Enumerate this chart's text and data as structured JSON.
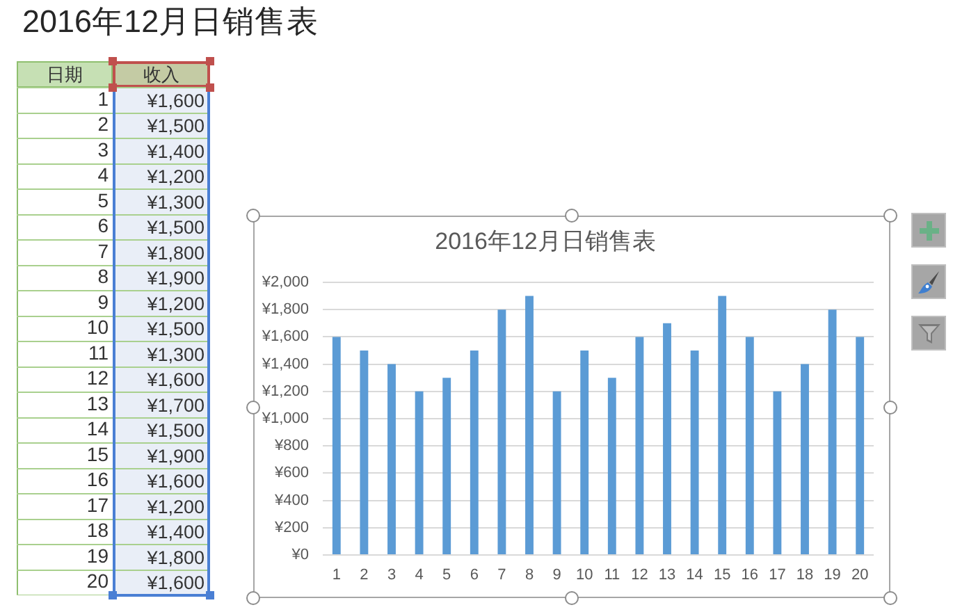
{
  "chart_data": [
    {
      "type": "heatmap",
      "title": "2016年12月日销售表",
      "ylabel": "日期",
      "categories": [
        "收入"
      ],
      "y_categories": [
        "1",
        "2",
        "3",
        "4",
        "5",
        "6",
        "7",
        "8",
        "9",
        "10",
        "11",
        "12",
        "13",
        "14",
        "15",
        "16",
        "17",
        "18",
        "19",
        "20"
      ],
      "cells": [
        [
          1600
        ],
        [
          1500
        ],
        [
          1400
        ],
        [
          1200
        ],
        [
          1300
        ],
        [
          1500
        ],
        [
          1800
        ],
        [
          1900
        ],
        [
          1200
        ],
        [
          1500
        ],
        [
          1300
        ],
        [
          1600
        ],
        [
          1700
        ],
        [
          1500
        ],
        [
          1900
        ],
        [
          1600
        ],
        [
          1200
        ],
        [
          1400
        ],
        [
          1800
        ],
        [
          1600
        ]
      ],
      "cell_labels": [
        [
          "¥1,600"
        ],
        [
          "¥1,500"
        ],
        [
          "¥1,400"
        ],
        [
          "¥1,200"
        ],
        [
          "¥1,300"
        ],
        [
          "¥1,500"
        ],
        [
          "¥1,800"
        ],
        [
          "¥1,900"
        ],
        [
          "¥1,200"
        ],
        [
          "¥1,500"
        ],
        [
          "¥1,300"
        ],
        [
          "¥1,600"
        ],
        [
          "¥1,700"
        ],
        [
          "¥1,500"
        ],
        [
          "¥1,900"
        ],
        [
          "¥1,600"
        ],
        [
          "¥1,200"
        ],
        [
          "¥1,400"
        ],
        [
          "¥1,800"
        ],
        [
          "¥1,600"
        ]
      ],
      "color": "#e9eef7"
    },
    {
      "type": "bar",
      "title": "2016年12月日销售表",
      "categories": [
        "1",
        "2",
        "3",
        "4",
        "5",
        "6",
        "7",
        "8",
        "9",
        "10",
        "11",
        "12",
        "13",
        "14",
        "15",
        "16",
        "17",
        "18",
        "19",
        "20"
      ],
      "values": [
        1600,
        1500,
        1400,
        1200,
        1300,
        1500,
        1800,
        1900,
        1200,
        1500,
        1300,
        1600,
        1700,
        1500,
        1900,
        1600,
        1200,
        1400,
        1800,
        1600
      ],
      "color": "#5b9bd5",
      "ylim": [
        0,
        2000
      ],
      "yticks": [
        {
          "value": 0,
          "label": "¥0"
        },
        {
          "value": 200,
          "label": "¥200"
        },
        {
          "value": 400,
          "label": "¥400"
        },
        {
          "value": 600,
          "label": "¥600"
        },
        {
          "value": 800,
          "label": "¥800"
        },
        {
          "value": 1000,
          "label": "¥1,000"
        },
        {
          "value": 1200,
          "label": "¥1,200"
        },
        {
          "value": 1400,
          "label": "¥1,400"
        },
        {
          "value": 1600,
          "label": "¥1,600"
        },
        {
          "value": 1800,
          "label": "¥1,800"
        },
        {
          "value": 2000,
          "label": "¥2,000"
        }
      ],
      "grid": "y"
    }
  ]
}
